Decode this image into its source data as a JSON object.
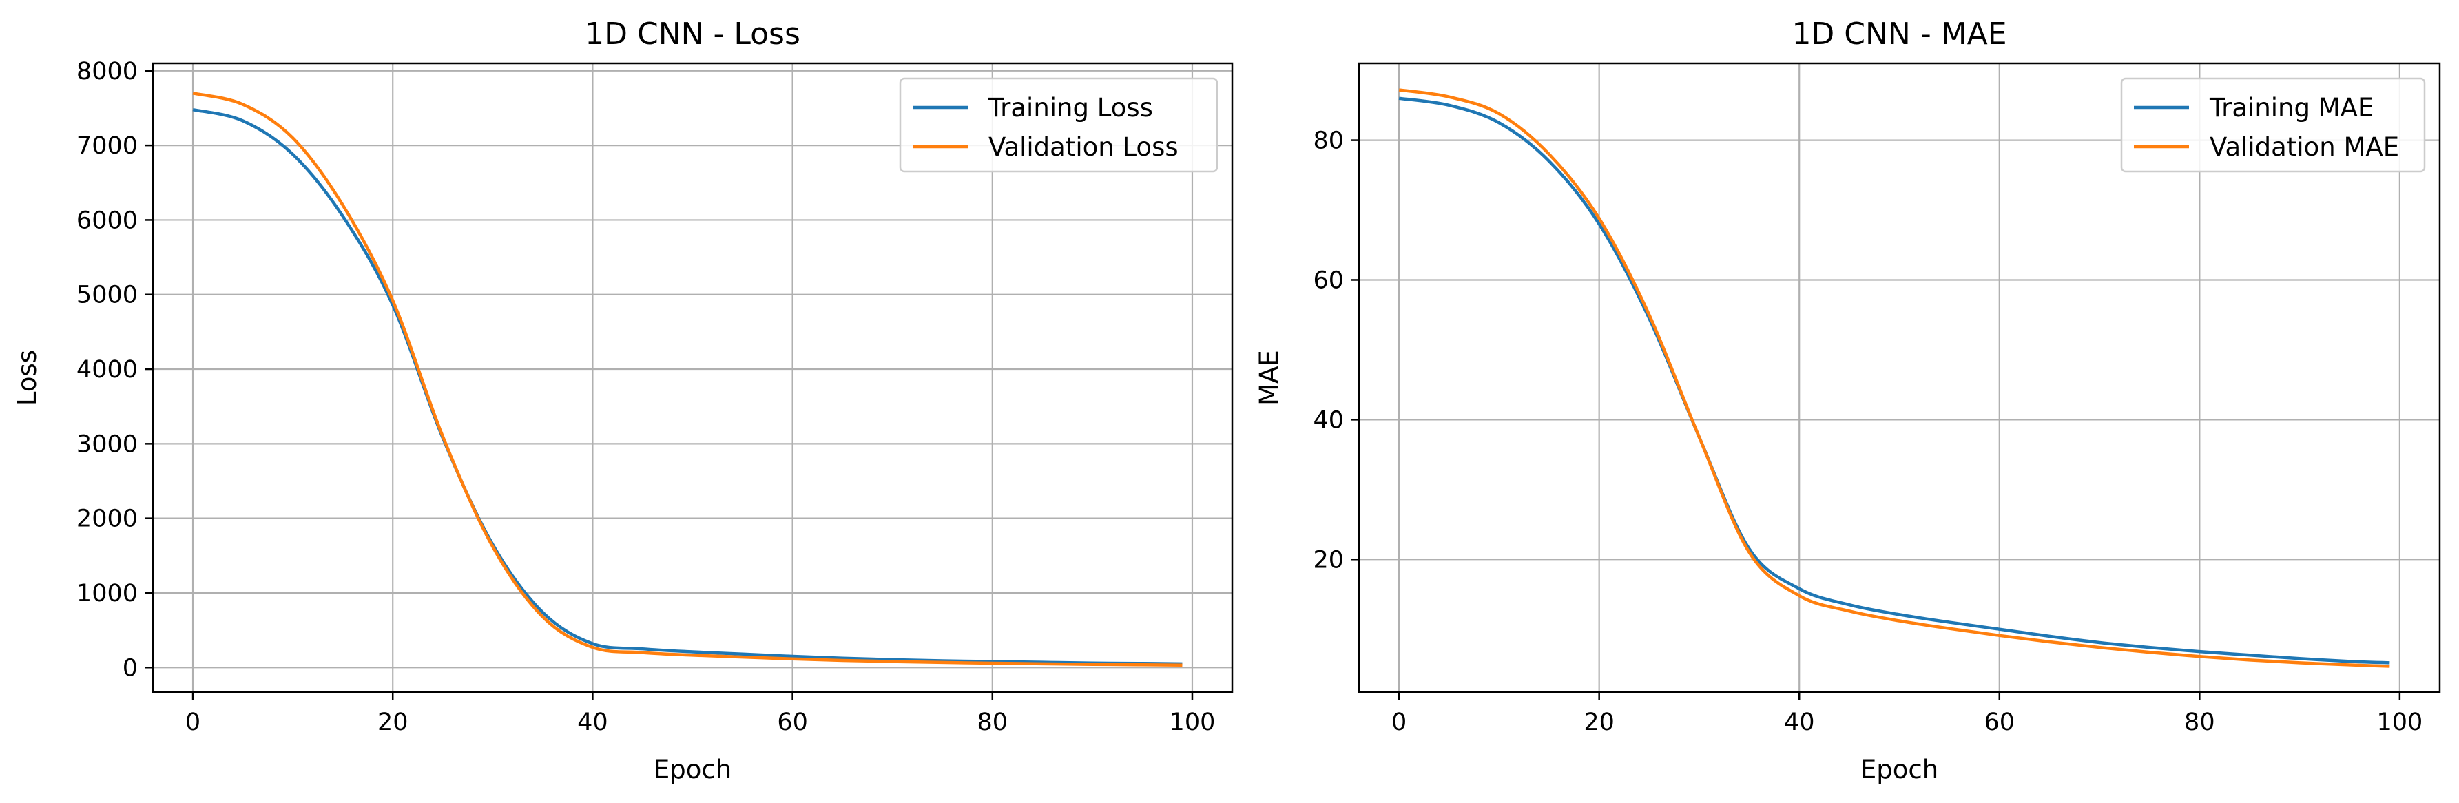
{
  "chart_data": [
    {
      "type": "line",
      "title": "1D CNN - Loss",
      "xlabel": "Epoch",
      "ylabel": "Loss",
      "xlim": [
        -4,
        104
      ],
      "ylim": [
        -330,
        8100
      ],
      "xticks": [
        0,
        20,
        40,
        60,
        80,
        100
      ],
      "yticks": [
        0,
        1000,
        2000,
        3000,
        4000,
        5000,
        6000,
        7000,
        8000
      ],
      "grid": true,
      "legend": "top-right",
      "x": [
        0,
        5,
        10,
        15,
        20,
        25,
        30,
        35,
        40,
        45,
        50,
        55,
        60,
        65,
        70,
        75,
        80,
        85,
        90,
        95,
        99
      ],
      "series": [
        {
          "name": "Training Loss",
          "color": "#1f77b4",
          "values": [
            7480,
            7330,
            6880,
            6050,
            4860,
            3080,
            1650,
            740,
            320,
            250,
            210,
            180,
            150,
            125,
            105,
            90,
            80,
            70,
            60,
            55,
            50
          ]
        },
        {
          "name": "Validation Loss",
          "color": "#ff7f0e",
          "values": [
            7700,
            7550,
            7100,
            6200,
            4920,
            3100,
            1620,
            680,
            270,
            200,
            165,
            140,
            115,
            95,
            80,
            68,
            58,
            50,
            42,
            37,
            32
          ]
        }
      ]
    },
    {
      "type": "line",
      "title": "1D CNN - MAE",
      "xlabel": "Epoch",
      "ylabel": "MAE",
      "xlim": [
        -4,
        104
      ],
      "ylim": [
        1,
        91
      ],
      "xticks": [
        0,
        20,
        40,
        60,
        80,
        100
      ],
      "yticks": [
        20,
        40,
        60,
        80
      ],
      "grid": true,
      "legend": "top-right",
      "x": [
        0,
        5,
        10,
        15,
        20,
        25,
        30,
        35,
        40,
        45,
        50,
        55,
        60,
        65,
        70,
        75,
        80,
        85,
        90,
        95,
        99
      ],
      "series": [
        {
          "name": "Training MAE",
          "color": "#1f77b4",
          "values": [
            86.0,
            85.0,
            82.5,
            77.0,
            68.0,
            54.5,
            37.5,
            21.5,
            15.8,
            13.5,
            12.1,
            11.0,
            10.0,
            9.0,
            8.1,
            7.4,
            6.8,
            6.3,
            5.8,
            5.4,
            5.2
          ]
        },
        {
          "name": "Validation MAE",
          "color": "#ff7f0e",
          "values": [
            87.2,
            86.2,
            83.8,
            78.0,
            68.8,
            55.0,
            37.5,
            21.0,
            14.8,
            12.6,
            11.2,
            10.1,
            9.1,
            8.2,
            7.4,
            6.7,
            6.1,
            5.6,
            5.2,
            4.9,
            4.7
          ]
        }
      ]
    }
  ]
}
